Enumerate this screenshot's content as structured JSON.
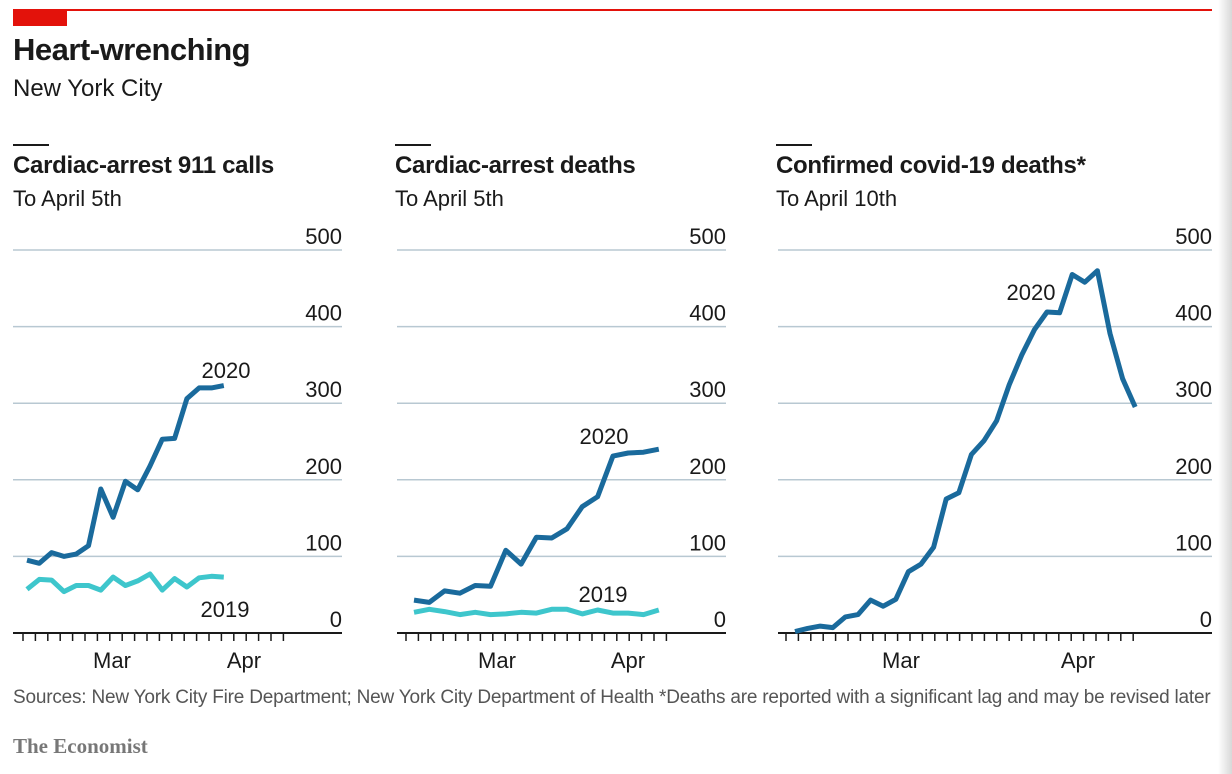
{
  "header": {
    "title": "Heart-wrenching",
    "subtitle": "New York City"
  },
  "colors": {
    "accent_red": "#e3120b",
    "series_2020": "#1a6a9c",
    "series_2019": "#3ec6cc",
    "gridline": "#b8c8d2",
    "axis": "#1a1a1a"
  },
  "chart_data": [
    {
      "type": "line",
      "title": "Cardiac-arrest 911 calls",
      "subtitle": "To April 5th",
      "ylim": [
        0,
        500
      ],
      "y_ticks": [
        0,
        100,
        200,
        300,
        400,
        500
      ],
      "y_tick_labels": [
        "0",
        "100",
        "200",
        "300",
        "400",
        "500"
      ],
      "x_tick_labels": [
        "Mar",
        "Apr"
      ],
      "grid": true,
      "series": [
        {
          "name": "2020",
          "values": [
            95,
            91,
            105,
            100,
            103,
            114,
            188,
            151,
            198,
            187,
            218,
            253,
            254,
            306,
            320,
            320,
            323
          ]
        },
        {
          "name": "2019",
          "values": [
            57,
            70,
            69,
            54,
            62,
            62,
            56,
            73,
            62,
            68,
            77,
            56,
            71,
            60,
            72,
            74,
            73
          ]
        }
      ]
    },
    {
      "type": "line",
      "title": "Cardiac-arrest deaths",
      "subtitle": "To April 5th",
      "ylim": [
        0,
        500
      ],
      "y_ticks": [
        0,
        100,
        200,
        300,
        400,
        500
      ],
      "y_tick_labels": [
        "0",
        "100",
        "200",
        "300",
        "400",
        "500"
      ],
      "x_tick_labels": [
        "Mar",
        "Apr"
      ],
      "grid": true,
      "series": [
        {
          "name": "2020",
          "values": [
            43,
            40,
            55,
            52,
            62,
            61,
            108,
            90,
            125,
            124,
            136,
            165,
            178,
            231,
            235,
            236,
            240
          ]
        },
        {
          "name": "2019",
          "values": [
            27,
            31,
            28,
            24,
            27,
            24,
            25,
            27,
            26,
            31,
            31,
            25,
            30,
            26,
            26,
            24,
            30
          ]
        }
      ]
    },
    {
      "type": "line",
      "title": "Confirmed covid-19 deaths*",
      "subtitle": "To April 10th",
      "ylim": [
        0,
        500
      ],
      "y_ticks": [
        0,
        100,
        200,
        300,
        400,
        500
      ],
      "y_tick_labels": [
        "0",
        "100",
        "200",
        "300",
        "400",
        "500"
      ],
      "x_tick_labels": [
        "Mar",
        "Apr"
      ],
      "grid": true,
      "series": [
        {
          "name": "2020",
          "values": [
            2,
            6,
            9,
            7,
            21,
            24,
            43,
            35,
            44,
            80,
            90,
            112,
            175,
            183,
            233,
            251,
            277,
            324,
            363,
            396,
            419,
            418,
            468,
            458,
            473,
            391,
            332,
            295
          ]
        }
      ]
    }
  ],
  "footer": {
    "source": "Sources: New York City Fire Department; New York City Department of Health  *Deaths are reported with a significant lag and may be revised later",
    "brand": "The Economist"
  }
}
